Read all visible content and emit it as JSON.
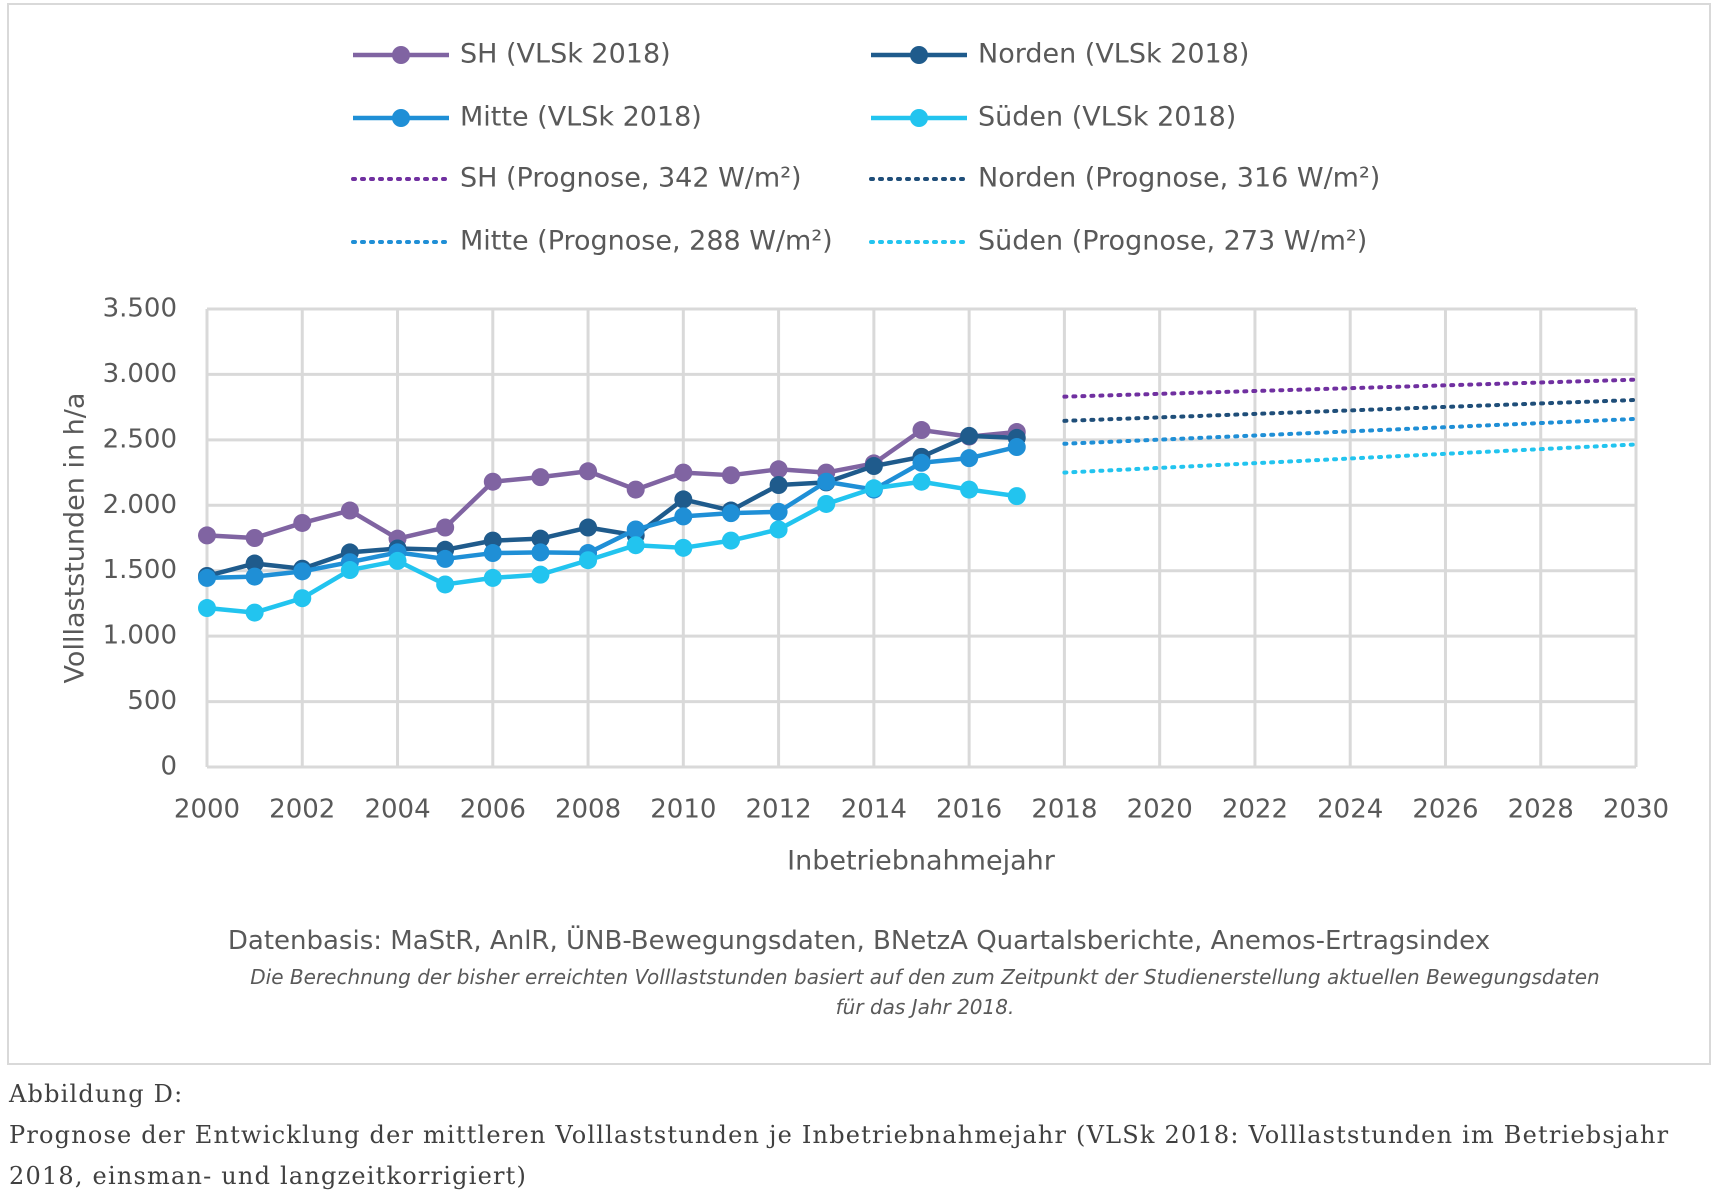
{
  "chart_data": {
    "type": "line",
    "y_label": "Volllaststunden in h/a",
    "x_label": "Inbetriebnahmejahr",
    "source": "Datenbasis: MaStR, AnlR, ÜNB-Bewegungsdaten, BNetzA Quartalsberichte, Anemos-Ertragsindex",
    "note": "Die Berechnung der bisher erreichten Volllaststunden basiert auf den zum Zeitpunkt der Studienerstellung aktuellen Bewegungsdaten für das Jahr 2018.",
    "xlim": [
      2000,
      2030
    ],
    "xticks": [
      2000,
      2002,
      2004,
      2006,
      2008,
      2010,
      2012,
      2014,
      2016,
      2018,
      2020,
      2022,
      2024,
      2026,
      2028,
      2030
    ],
    "ylim": [
      0,
      3500
    ],
    "yticks": [
      0,
      500,
      {
        "value": 1000,
        "label": "1.000"
      },
      {
        "value": 1500,
        "label": "1.500"
      },
      {
        "value": 2000,
        "label": "2.000"
      },
      {
        "value": 2500,
        "label": "2.500"
      },
      {
        "value": 3000,
        "label": "3.000"
      },
      {
        "value": 3500,
        "label": "3.500"
      }
    ],
    "grid": true,
    "legend": "top",
    "series": [
      {
        "name": "SH (VLSk 2018)",
        "color": "#8064a2",
        "line_style": "solid",
        "x": [
          2000,
          2001,
          2002,
          2003,
          2004,
          2005,
          2006,
          2007,
          2008,
          2009,
          2010,
          2011,
          2012,
          2013,
          2014,
          2015,
          2016,
          2017
        ],
        "values": [
          1770,
          1750,
          1865,
          1960,
          1745,
          1830,
          2180,
          2215,
          2260,
          2120,
          2250,
          2230,
          2275,
          2250,
          2320,
          2575,
          2525,
          2560
        ]
      },
      {
        "name": "Norden (VLSk 2018)",
        "color": "#1f5b8c",
        "line_style": "solid",
        "x": [
          2000,
          2001,
          2002,
          2003,
          2004,
          2005,
          2006,
          2007,
          2008,
          2009,
          2010,
          2011,
          2012,
          2013,
          2014,
          2015,
          2016,
          2017
        ],
        "values": [
          1460,
          1555,
          1515,
          1640,
          1670,
          1660,
          1730,
          1745,
          1830,
          1770,
          2045,
          1960,
          2155,
          2175,
          2300,
          2370,
          2530,
          2515
        ]
      },
      {
        "name": "Mitte (VLSk 2018)",
        "color": "#1f8fd6",
        "line_style": "solid",
        "x": [
          2000,
          2001,
          2002,
          2003,
          2004,
          2005,
          2006,
          2007,
          2008,
          2009,
          2010,
          2011,
          2012,
          2013,
          2014,
          2015,
          2016,
          2017
        ],
        "values": [
          1445,
          1455,
          1495,
          1565,
          1640,
          1590,
          1635,
          1640,
          1635,
          1815,
          1915,
          1940,
          1950,
          2180,
          2120,
          2325,
          2360,
          2445
        ]
      },
      {
        "name": "Süden (VLSk 2018)",
        "color": "#22c4ef",
        "line_style": "solid",
        "x": [
          2000,
          2001,
          2002,
          2003,
          2004,
          2005,
          2006,
          2007,
          2008,
          2009,
          2010,
          2011,
          2012,
          2013,
          2014,
          2015,
          2016,
          2017
        ],
        "values": [
          1215,
          1180,
          1290,
          1505,
          1575,
          1395,
          1445,
          1470,
          1580,
          1695,
          1675,
          1730,
          1815,
          2010,
          2130,
          2180,
          2120,
          2070
        ]
      },
      {
        "name": "SH (Prognose, 342 W/m²)",
        "color": "#7030a0",
        "line_style": "dotted",
        "x": [
          2018,
          2030
        ],
        "values": [
          2830,
          2960
        ]
      },
      {
        "name": "Norden (Prognose, 316 W/m²)",
        "color": "#1f4e79",
        "line_style": "dotted",
        "x": [
          2018,
          2030
        ],
        "values": [
          2645,
          2805
        ]
      },
      {
        "name": "Mitte (Prognose, 288 W/m²)",
        "color": "#1f8fd6",
        "line_style": "dotted",
        "x": [
          2018,
          2030
        ],
        "values": [
          2470,
          2660
        ]
      },
      {
        "name": "Süden (Prognose, 273 W/m²)",
        "color": "#22c4ef",
        "line_style": "dotted",
        "x": [
          2018,
          2030
        ],
        "values": [
          2250,
          2465
        ]
      }
    ]
  },
  "caption": {
    "label": "Abbildung D:",
    "text": "Prognose der Entwicklung der mittleren Volllaststunden je Inbetriebnahmejahr (VLSk 2018: Volllaststunden im Betriebsjahr 2018, einsman- und langzeitkorrigiert)"
  }
}
